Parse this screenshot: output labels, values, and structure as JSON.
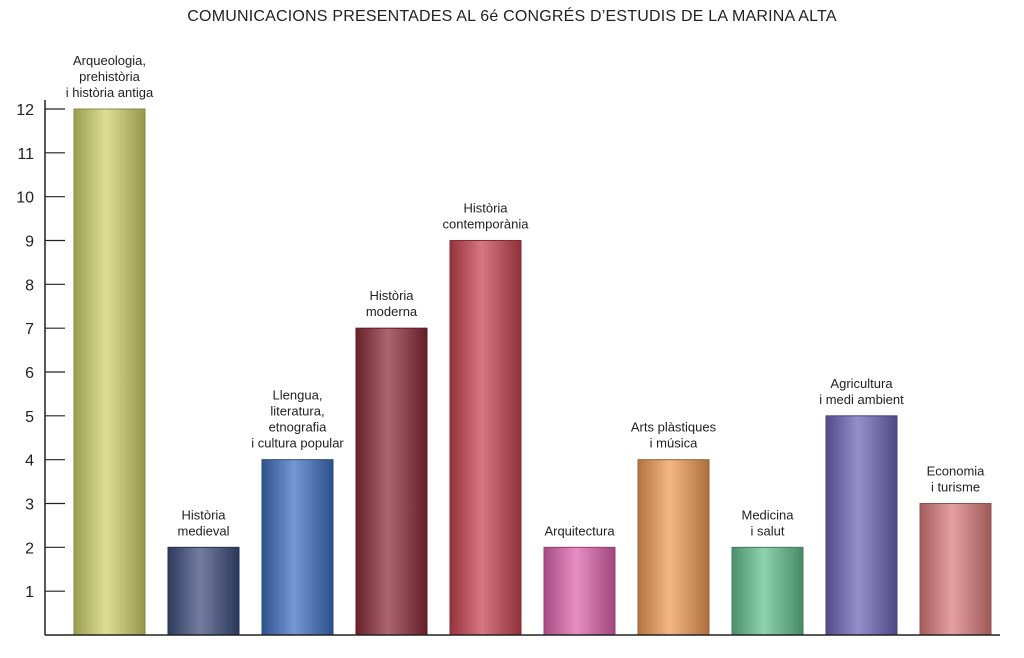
{
  "chart_data": {
    "type": "bar",
    "title": "COMUNICACIONS PRESENTADES AL 6é CONGRÉS D’ESTUDIS DE LA MARINA ALTA",
    "xlabel": "",
    "ylabel": "",
    "ylim": [
      0,
      12
    ],
    "yticks": [
      1,
      2,
      3,
      4,
      5,
      6,
      7,
      8,
      9,
      10,
      11,
      12
    ],
    "grid": false,
    "categories": [
      [
        "Arqueologia,",
        "prehistòria",
        "i història antiga"
      ],
      [
        "Història",
        "medieval"
      ],
      [
        "Llengua,",
        "literatura,",
        "etnografia",
        "i cultura popular"
      ],
      [
        "Història",
        "moderna"
      ],
      [
        "Història",
        "contemporània"
      ],
      [
        "Arquitectura"
      ],
      [
        "Arts plàstiques",
        "i música"
      ],
      [
        "Medicina",
        "i salut"
      ],
      [
        "Agricultura",
        "i medi ambient"
      ],
      [
        "Economia",
        "i turisme"
      ]
    ],
    "values": [
      12,
      2,
      4,
      7,
      9,
      2,
      4,
      2,
      5,
      3
    ],
    "colors": [
      "#cfd36a",
      "#3c4c7c",
      "#3f6fc0",
      "#8a2a36",
      "#c84250",
      "#dd62ad",
      "#ef9a55",
      "#63c08e",
      "#6d64b8",
      "#db7b7b"
    ]
  }
}
